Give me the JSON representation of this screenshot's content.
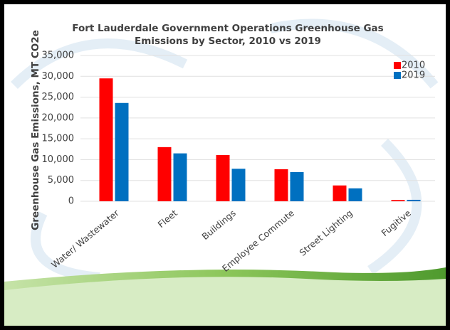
{
  "chart_data": {
    "type": "bar",
    "title": "Fort Lauderdale Government Operations Greenhouse Gas Emissions by Sector, 2010 vs 2019",
    "y_label": "Greenhouse Gas Emissions, MT CO2e",
    "categories": [
      "Water/ Wastewater",
      "Fleet",
      "Buildings",
      "Employee Commute",
      "Street Lighting",
      "Fugitive"
    ],
    "series": [
      {
        "name": "2010",
        "color": "#ff0000",
        "values": [
          29500,
          13000,
          11100,
          7700,
          3800,
          300
        ]
      },
      {
        "name": "2019",
        "color": "#0070c0",
        "values": [
          23600,
          11500,
          7800,
          7000,
          3100,
          350
        ]
      }
    ],
    "ylim": [
      0,
      35000
    ],
    "yticks": [
      0,
      {
        "value": 5000,
        "label": "5,000"
      },
      {
        "value": 10000,
        "label": "10,000"
      },
      {
        "value": 15000,
        "label": "15,000"
      },
      {
        "value": 20000,
        "label": "20,000"
      },
      {
        "value": 25000,
        "label": "25,000"
      },
      {
        "value": 30000,
        "label": "30,000"
      },
      {
        "value": 35000,
        "label": "35,000"
      }
    ],
    "grid": true,
    "legend": "top-right"
  }
}
